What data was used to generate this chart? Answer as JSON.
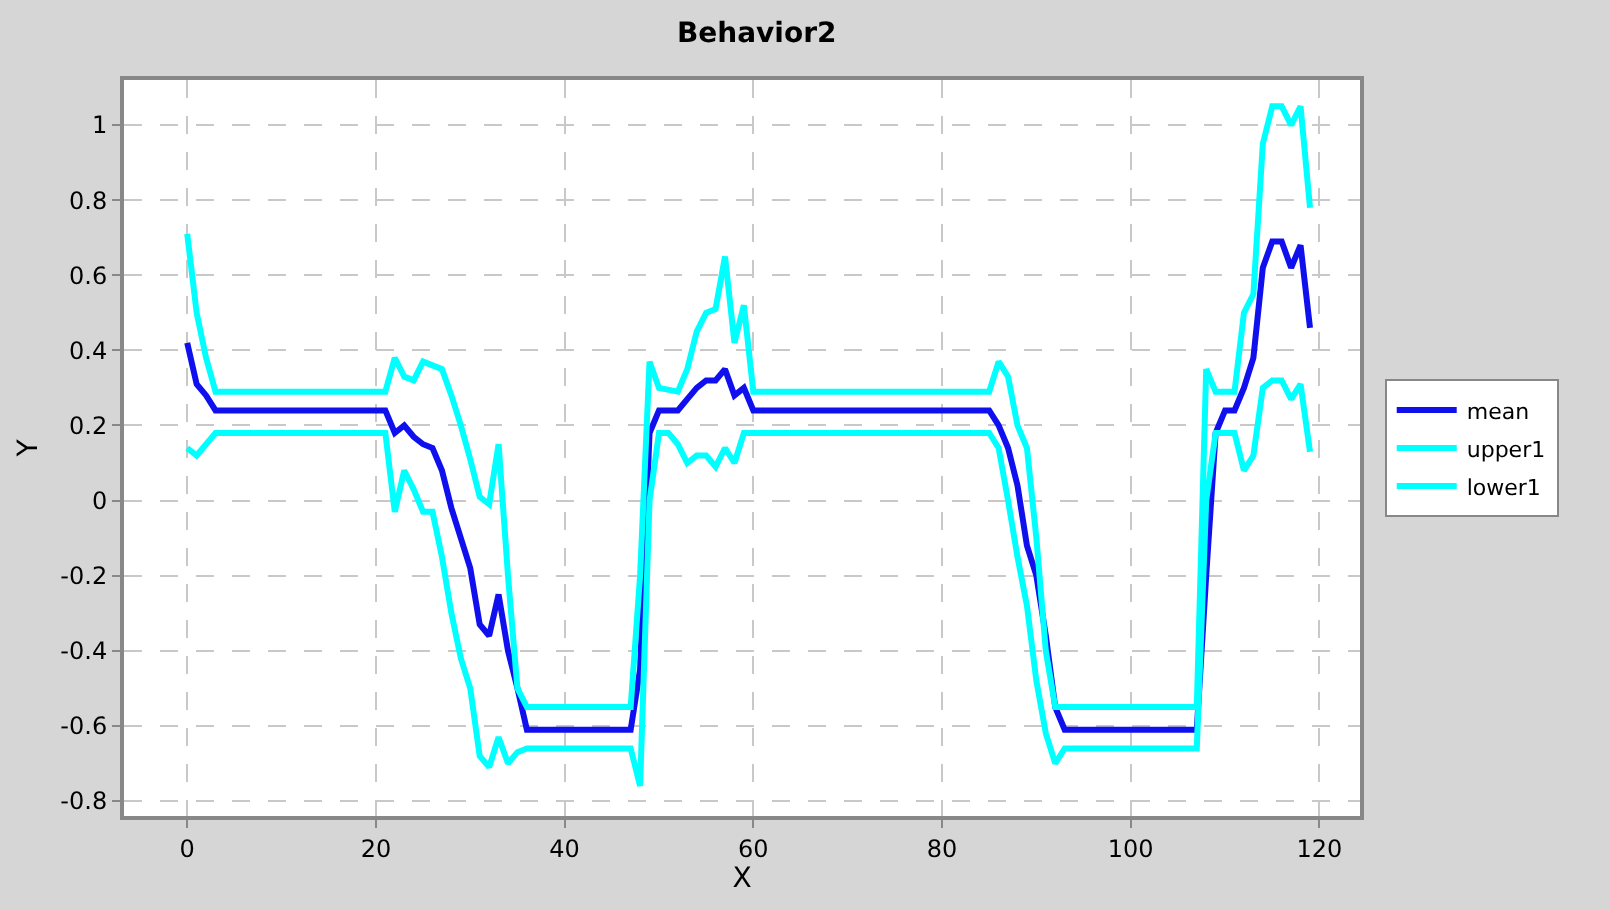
{
  "chart_data": {
    "type": "line",
    "title": "Behavior2",
    "xlabel": "X",
    "ylabel": "Y",
    "xlim": [
      -6.7,
      124.3
    ],
    "ylim": [
      -0.84,
      1.12
    ],
    "xticks": [
      0,
      20,
      40,
      60,
      80,
      100,
      120
    ],
    "yticks": [
      -0.8,
      -0.6,
      -0.4,
      -0.2,
      0,
      0.2,
      0.4,
      0.6,
      0.8,
      1
    ],
    "grid": true,
    "legend": "right",
    "marker": "none",
    "line_style": "solid",
    "series": [
      {
        "name": "mean",
        "color": "#1010ee",
        "x": [
          0,
          1,
          2,
          3,
          21,
          22,
          23,
          24,
          25,
          26,
          27,
          28,
          29,
          30,
          31,
          32,
          33,
          34,
          35,
          36,
          47,
          48,
          49,
          50,
          52,
          53,
          54,
          55,
          56,
          57,
          58,
          59,
          60,
          85,
          86,
          87,
          88,
          89,
          90,
          91,
          92,
          93,
          107,
          108,
          109,
          110,
          111,
          112,
          113,
          114,
          115,
          116,
          117,
          118,
          119
        ],
        "values": [
          0.42,
          0.31,
          0.28,
          0.24,
          0.24,
          0.18,
          0.2,
          0.17,
          0.15,
          0.14,
          0.08,
          -0.02,
          -0.1,
          -0.18,
          -0.33,
          -0.36,
          -0.25,
          -0.4,
          -0.5,
          -0.61,
          -0.61,
          -0.45,
          0.18,
          0.24,
          0.24,
          0.27,
          0.3,
          0.32,
          0.32,
          0.35,
          0.28,
          0.3,
          0.24,
          0.24,
          0.2,
          0.14,
          0.04,
          -0.12,
          -0.2,
          -0.36,
          -0.55,
          -0.61,
          -0.61,
          -0.2,
          0.18,
          0.24,
          0.24,
          0.3,
          0.38,
          0.62,
          0.69,
          0.69,
          0.62,
          0.68,
          0.46
        ]
      },
      {
        "name": "upper1",
        "color": "#00ffff",
        "x": [
          0,
          1,
          2,
          3,
          21,
          22,
          23,
          24,
          25,
          26,
          27,
          28,
          29,
          30,
          31,
          32,
          33,
          34,
          35,
          36,
          47,
          48,
          49,
          50,
          52,
          53,
          54,
          55,
          56,
          57,
          58,
          59,
          60,
          85,
          86,
          87,
          88,
          89,
          90,
          91,
          92,
          107,
          108,
          109,
          111,
          112,
          113,
          114,
          115,
          116,
          117,
          118,
          119
        ],
        "values": [
          0.71,
          0.5,
          0.38,
          0.29,
          0.29,
          0.38,
          0.33,
          0.32,
          0.37,
          0.36,
          0.35,
          0.28,
          0.2,
          0.11,
          0.01,
          -0.01,
          0.15,
          -0.2,
          -0.5,
          -0.55,
          -0.55,
          -0.2,
          0.37,
          0.3,
          0.29,
          0.35,
          0.45,
          0.5,
          0.51,
          0.65,
          0.42,
          0.52,
          0.29,
          0.29,
          0.37,
          0.33,
          0.2,
          0.14,
          -0.1,
          -0.4,
          -0.55,
          -0.55,
          0.35,
          0.29,
          0.29,
          0.5,
          0.55,
          0.95,
          1.05,
          1.05,
          1.0,
          1.05,
          0.78
        ]
      },
      {
        "name": "lower1",
        "color": "#00ffff",
        "x": [
          0,
          1,
          2,
          3,
          21,
          22,
          23,
          24,
          25,
          26,
          27,
          28,
          29,
          30,
          31,
          32,
          33,
          34,
          35,
          36,
          47,
          48,
          49,
          50,
          51,
          52,
          53,
          54,
          55,
          56,
          57,
          58,
          59,
          85,
          86,
          87,
          88,
          89,
          90,
          91,
          92,
          93,
          107,
          108,
          109,
          111,
          112,
          113,
          114,
          115,
          116,
          117,
          118,
          119
        ],
        "values": [
          0.14,
          0.12,
          0.15,
          0.18,
          0.18,
          -0.03,
          0.08,
          0.03,
          -0.03,
          -0.03,
          -0.15,
          -0.3,
          -0.42,
          -0.5,
          -0.68,
          -0.71,
          -0.63,
          -0.7,
          -0.67,
          -0.66,
          -0.66,
          -0.76,
          0.0,
          0.18,
          0.18,
          0.15,
          0.1,
          0.12,
          0.12,
          0.09,
          0.14,
          0.1,
          0.18,
          0.18,
          0.14,
          0.0,
          -0.15,
          -0.28,
          -0.48,
          -0.62,
          -0.7,
          -0.66,
          -0.66,
          0.0,
          0.18,
          0.18,
          0.08,
          0.12,
          0.3,
          0.32,
          0.32,
          0.27,
          0.31,
          0.13
        ]
      }
    ]
  }
}
